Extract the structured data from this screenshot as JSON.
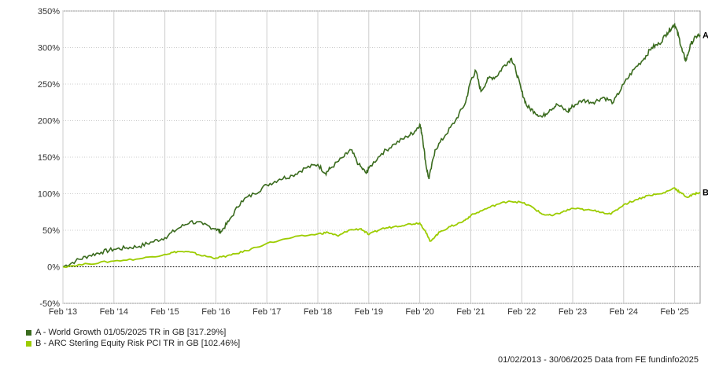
{
  "chart_data": {
    "type": "line",
    "title": "",
    "xlabel": "",
    "ylabel": "",
    "ylim": [
      -50,
      350
    ],
    "xlim": [
      2013.0,
      2025.5
    ],
    "yticks": [
      -50,
      0,
      50,
      100,
      150,
      200,
      250,
      300,
      350
    ],
    "ytick_labels": [
      "-50%",
      "0%",
      "50%",
      "100%",
      "150%",
      "200%",
      "250%",
      "300%",
      "350%"
    ],
    "xticks": [
      2013.0,
      2014.0,
      2015.0,
      2016.0,
      2017.0,
      2018.0,
      2019.0,
      2020.0,
      2021.0,
      2022.0,
      2023.0,
      2024.0,
      2025.0
    ],
    "xtick_labels": [
      "Feb '13",
      "Feb '14",
      "Feb '15",
      "Feb '16",
      "Feb '17",
      "Feb '18",
      "Feb '19",
      "Feb '20",
      "Feb '21",
      "Feb '22",
      "Feb '23",
      "Feb '24",
      "Feb '25"
    ],
    "grid": true,
    "zero_line": true,
    "series": [
      {
        "name": "A - World Growth 01/05/2025 TR in GB [317.29%]",
        "end_label": "A",
        "color": "#3a6b1e",
        "points": [
          [
            2013.0,
            0
          ],
          [
            2013.25,
            8
          ],
          [
            2013.5,
            15
          ],
          [
            2013.75,
            20
          ],
          [
            2014.0,
            24
          ],
          [
            2014.25,
            26
          ],
          [
            2014.5,
            28
          ],
          [
            2014.75,
            34
          ],
          [
            2015.0,
            40
          ],
          [
            2015.25,
            52
          ],
          [
            2015.5,
            62
          ],
          [
            2015.75,
            58
          ],
          [
            2016.0,
            52
          ],
          [
            2016.1,
            48
          ],
          [
            2016.25,
            62
          ],
          [
            2016.5,
            90
          ],
          [
            2016.75,
            100
          ],
          [
            2017.0,
            112
          ],
          [
            2017.25,
            120
          ],
          [
            2017.5,
            125
          ],
          [
            2017.75,
            135
          ],
          [
            2018.0,
            140
          ],
          [
            2018.15,
            128
          ],
          [
            2018.25,
            135
          ],
          [
            2018.5,
            150
          ],
          [
            2018.65,
            160
          ],
          [
            2018.8,
            140
          ],
          [
            2018.95,
            128
          ],
          [
            2019.0,
            135
          ],
          [
            2019.25,
            155
          ],
          [
            2019.5,
            168
          ],
          [
            2019.75,
            178
          ],
          [
            2019.9,
            185
          ],
          [
            2020.0,
            195
          ],
          [
            2020.05,
            180
          ],
          [
            2020.12,
            140
          ],
          [
            2020.18,
            120
          ],
          [
            2020.3,
            160
          ],
          [
            2020.5,
            180
          ],
          [
            2020.7,
            200
          ],
          [
            2020.9,
            225
          ],
          [
            2021.0,
            255
          ],
          [
            2021.1,
            268
          ],
          [
            2021.2,
            240
          ],
          [
            2021.35,
            258
          ],
          [
            2021.5,
            260
          ],
          [
            2021.65,
            275
          ],
          [
            2021.8,
            285
          ],
          [
            2021.88,
            270
          ],
          [
            2022.0,
            240
          ],
          [
            2022.1,
            220
          ],
          [
            2022.25,
            212
          ],
          [
            2022.4,
            205
          ],
          [
            2022.55,
            215
          ],
          [
            2022.7,
            222
          ],
          [
            2022.9,
            212
          ],
          [
            2023.0,
            220
          ],
          [
            2023.2,
            228
          ],
          [
            2023.4,
            225
          ],
          [
            2023.6,
            232
          ],
          [
            2023.8,
            225
          ],
          [
            2024.0,
            250
          ],
          [
            2024.2,
            270
          ],
          [
            2024.4,
            285
          ],
          [
            2024.55,
            300
          ],
          [
            2024.7,
            305
          ],
          [
            2024.85,
            320
          ],
          [
            2024.95,
            328
          ],
          [
            2025.0,
            332
          ],
          [
            2025.08,
            315
          ],
          [
            2025.15,
            295
          ],
          [
            2025.22,
            282
          ],
          [
            2025.32,
            305
          ],
          [
            2025.42,
            315
          ],
          [
            2025.5,
            317
          ]
        ]
      },
      {
        "name": "B - ARC Sterling Equity Risk PCI TR in GB [102.46%]",
        "end_label": "B",
        "color": "#9ccc00",
        "points": [
          [
            2013.0,
            0
          ],
          [
            2013.5,
            4
          ],
          [
            2014.0,
            8
          ],
          [
            2014.5,
            11
          ],
          [
            2015.0,
            17
          ],
          [
            2015.25,
            21
          ],
          [
            2015.5,
            20
          ],
          [
            2015.75,
            15
          ],
          [
            2016.0,
            12
          ],
          [
            2016.3,
            16
          ],
          [
            2016.6,
            22
          ],
          [
            2017.0,
            32
          ],
          [
            2017.5,
            40
          ],
          [
            2018.0,
            45
          ],
          [
            2018.2,
            47
          ],
          [
            2018.4,
            42
          ],
          [
            2018.6,
            50
          ],
          [
            2018.85,
            52
          ],
          [
            2019.0,
            44
          ],
          [
            2019.25,
            52
          ],
          [
            2019.5,
            55
          ],
          [
            2019.75,
            58
          ],
          [
            2020.0,
            60
          ],
          [
            2020.1,
            50
          ],
          [
            2020.2,
            35
          ],
          [
            2020.4,
            48
          ],
          [
            2020.6,
            55
          ],
          [
            2020.85,
            62
          ],
          [
            2021.0,
            70
          ],
          [
            2021.25,
            78
          ],
          [
            2021.5,
            85
          ],
          [
            2021.75,
            90
          ],
          [
            2022.0,
            88
          ],
          [
            2022.2,
            82
          ],
          [
            2022.4,
            72
          ],
          [
            2022.6,
            70
          ],
          [
            2022.8,
            75
          ],
          [
            2023.0,
            80
          ],
          [
            2023.25,
            78
          ],
          [
            2023.5,
            76
          ],
          [
            2023.75,
            72
          ],
          [
            2024.0,
            85
          ],
          [
            2024.25,
            92
          ],
          [
            2024.5,
            98
          ],
          [
            2024.75,
            100
          ],
          [
            2025.0,
            108
          ],
          [
            2025.1,
            102
          ],
          [
            2025.25,
            95
          ],
          [
            2025.4,
            100
          ],
          [
            2025.5,
            102
          ]
        ]
      }
    ],
    "footer": "01/02/2013 - 30/06/2025 Data from FE fundinfo2025"
  }
}
